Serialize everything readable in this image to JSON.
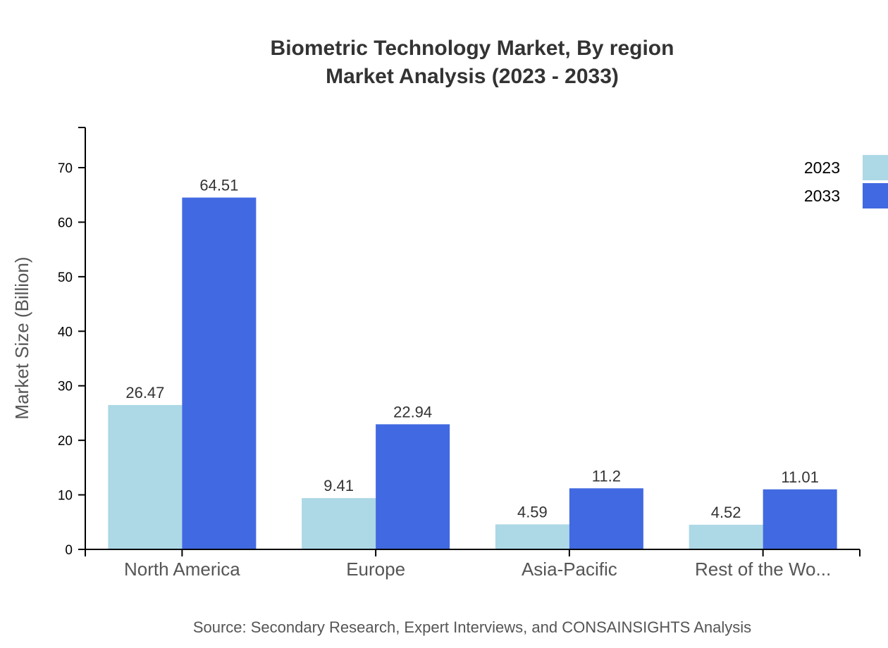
{
  "title": {
    "line1": "Biometric Technology Market, By region",
    "line2": "Market Analysis (2023 - 2033)"
  },
  "source": "Source: Secondary Research, Expert Interviews, and CONSAINSIGHTS Analysis",
  "colors": {
    "2023": "#add8e6",
    "2033": "#4169e1",
    "axis": "#000000",
    "label": "#333333",
    "axis_title": "#555555"
  },
  "legend": [
    {
      "label": "2023",
      "color": "#add8e6"
    },
    {
      "label": "2033",
      "color": "#4169e1"
    }
  ],
  "chart_data": {
    "type": "bar",
    "title": "Biometric Technology Market, By region Market Analysis (2023 - 2033)",
    "xlabel": "",
    "ylabel": "Market Size (Billion)",
    "categories": [
      "North America",
      "Europe",
      "Asia-Pacific",
      "Rest of the Wo..."
    ],
    "series": [
      {
        "name": "2023",
        "values": [
          26.47,
          9.41,
          4.59,
          4.52
        ]
      },
      {
        "name": "2033",
        "values": [
          64.51,
          22.94,
          11.2,
          11.01
        ]
      }
    ],
    "ylim": [
      0,
      75
    ],
    "yticks": [
      0,
      10,
      20,
      30,
      40,
      50,
      60,
      70
    ],
    "grid": false,
    "legend_position": "top-right"
  }
}
